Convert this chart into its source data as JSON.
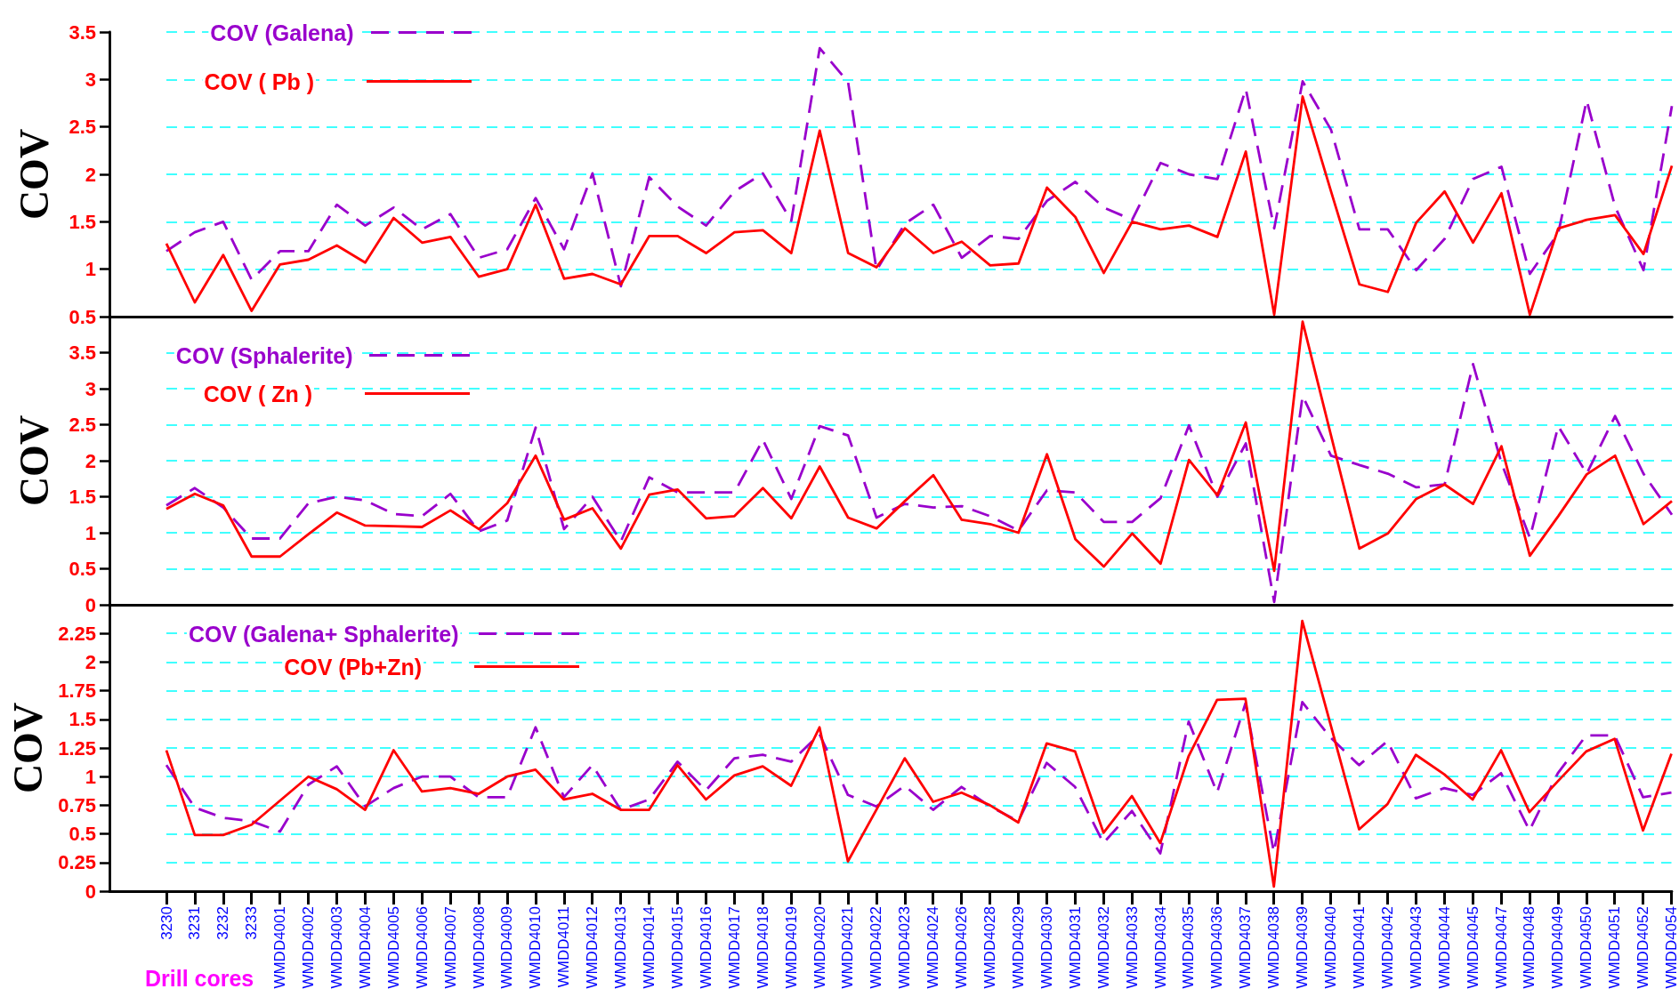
{
  "chart_data": [
    {
      "type": "line",
      "ylabel": "COV",
      "categories": [
        "3230",
        "3231",
        "3232",
        "3233",
        "WMDD4001",
        "WMDD4002",
        "WMDD4003",
        "WMDD4004",
        "WMDD4005",
        "WMDD4006",
        "WMDD4007",
        "WMDD4008",
        "WMDD4009",
        "WMDD4010",
        "WMDD4011",
        "WMDD4012",
        "WMDD4013",
        "WMDD4014",
        "WMDD4015",
        "WMDD4016",
        "WMDD4017",
        "WMDD4018",
        "WMDD4019",
        "WMDD4020",
        "WMDD4021",
        "WMDD4022",
        "WMDD4023",
        "WMDD4024",
        "WMDD4026",
        "WMDD4028",
        "WMDD4029",
        "WMDD4030",
        "WMDD4031",
        "WMDD4032",
        "WMDD4033",
        "WMDD4034",
        "WMDD4035",
        "WMDD4036",
        "WMDD4037",
        "WMDD4038",
        "WMDD4039",
        "WMDD4040",
        "WMDD4041",
        "WMDD4042",
        "WMDD4043",
        "WMDD4044",
        "WMDD4045",
        "WMDD4047",
        "WMDD4048",
        "WMDD4049",
        "WMDD4050",
        "WMDD4051",
        "WMDD4052",
        "WMDD4054"
      ],
      "series": [
        {
          "name": "COV (Galena)",
          "color": "#9900cc",
          "line_style": "dashed",
          "values": [
            1.19,
            1.39,
            1.5,
            0.89,
            1.19,
            1.19,
            1.68,
            1.46,
            1.65,
            1.42,
            1.58,
            1.12,
            1.21,
            1.75,
            1.21,
            2.01,
            0.82,
            1.97,
            1.66,
            1.46,
            1.82,
            2.01,
            1.51,
            3.33,
            2.97,
            0.99,
            1.48,
            1.68,
            1.12,
            1.35,
            1.32,
            1.72,
            1.92,
            1.65,
            1.52,
            2.12,
            2.0,
            1.95,
            2.9,
            1.43,
            2.98,
            2.47,
            1.42,
            1.42,
            0.99,
            1.32,
            1.95,
            2.08,
            0.95,
            1.38,
            2.78,
            1.66,
            0.99,
            2.72
          ]
        },
        {
          "name": "COV ( Pb )",
          "color": "#ff0000",
          "line_style": "solid",
          "values": [
            1.27,
            0.65,
            1.15,
            0.56,
            1.05,
            1.1,
            1.25,
            1.07,
            1.54,
            1.28,
            1.34,
            0.92,
            1.0,
            1.68,
            0.9,
            0.95,
            0.84,
            1.35,
            1.35,
            1.17,
            1.39,
            1.41,
            1.17,
            2.46,
            1.17,
            1.02,
            1.43,
            1.17,
            1.29,
            1.04,
            1.06,
            1.86,
            1.55,
            0.96,
            1.5,
            1.42,
            1.46,
            1.34,
            2.24,
            0.52,
            2.82,
            1.82,
            0.84,
            0.76,
            1.49,
            1.82,
            1.28,
            1.8,
            0.52,
            1.43,
            1.52,
            1.57,
            1.16,
            2.09
          ]
        }
      ],
      "ylim": [
        0.5,
        3.5
      ],
      "yticks": [
        0.5,
        1,
        1.5,
        2,
        2.5,
        3,
        3.5
      ],
      "grid": "y",
      "legend": "top left",
      "marker": "none",
      "tick_labels": "y"
    },
    {
      "type": "line",
      "ylabel": "COV",
      "categories": [
        "3230",
        "3231",
        "3232",
        "3233",
        "WMDD4001",
        "WMDD4002",
        "WMDD4003",
        "WMDD4004",
        "WMDD4005",
        "WMDD4006",
        "WMDD4007",
        "WMDD4008",
        "WMDD4009",
        "WMDD4010",
        "WMDD4011",
        "WMDD4012",
        "WMDD4013",
        "WMDD4014",
        "WMDD4015",
        "WMDD4016",
        "WMDD4017",
        "WMDD4018",
        "WMDD4019",
        "WMDD4020",
        "WMDD4021",
        "WMDD4022",
        "WMDD4023",
        "WMDD4024",
        "WMDD4026",
        "WMDD4028",
        "WMDD4029",
        "WMDD4030",
        "WMDD4031",
        "WMDD4032",
        "WMDD4033",
        "WMDD4034",
        "WMDD4035",
        "WMDD4036",
        "WMDD4037",
        "WMDD4038",
        "WMDD4039",
        "WMDD4040",
        "WMDD4041",
        "WMDD4042",
        "WMDD4043",
        "WMDD4044",
        "WMDD4045",
        "WMDD4047",
        "WMDD4048",
        "WMDD4049",
        "WMDD4050",
        "WMDD4051",
        "WMDD4052",
        "WMDD4054"
      ],
      "series": [
        {
          "name": "COV (Sphalerite)",
          "color": "#9900cc",
          "line_style": "dashed",
          "values": [
            1.38,
            1.62,
            1.35,
            0.92,
            0.92,
            1.41,
            1.5,
            1.45,
            1.26,
            1.23,
            1.54,
            1.02,
            1.17,
            2.46,
            1.05,
            1.5,
            0.88,
            1.77,
            1.56,
            1.56,
            1.56,
            2.29,
            1.47,
            2.48,
            2.35,
            1.21,
            1.4,
            1.35,
            1.37,
            1.23,
            1.03,
            1.59,
            1.56,
            1.15,
            1.15,
            1.48,
            2.49,
            1.5,
            2.24,
            0.04,
            2.9,
            2.07,
            1.94,
            1.82,
            1.63,
            1.67,
            3.34,
            1.97,
            0.93,
            2.48,
            1.82,
            2.62,
            1.82,
            1.25
          ]
        },
        {
          "name": "COV ( Zn )",
          "color": "#ff0000",
          "line_style": "solid",
          "values": [
            1.33,
            1.54,
            1.38,
            0.67,
            0.67,
            0.98,
            1.28,
            1.1,
            1.09,
            1.08,
            1.31,
            1.05,
            1.41,
            2.07,
            1.18,
            1.34,
            0.78,
            1.53,
            1.6,
            1.2,
            1.23,
            1.62,
            1.2,
            1.92,
            1.21,
            1.06,
            1.44,
            1.8,
            1.18,
            1.12,
            1.0,
            2.09,
            0.91,
            0.53,
            0.99,
            0.57,
            2.01,
            1.52,
            2.53,
            0.47,
            3.93,
            2.35,
            0.78,
            0.99,
            1.47,
            1.67,
            1.4,
            2.2,
            0.68,
            1.23,
            1.81,
            2.07,
            1.12,
            1.44
          ]
        }
      ],
      "ylim": [
        0,
        4
      ],
      "yticks": [
        0,
        0.5,
        1,
        1.5,
        2,
        2.5,
        3,
        3.5
      ],
      "grid": "y",
      "legend": "top left",
      "marker": "none",
      "tick_labels": "y"
    },
    {
      "type": "line",
      "xlabel": "Drill cores",
      "ylabel": "COV",
      "categories": [
        "3230",
        "3231",
        "3232",
        "3233",
        "WMDD4001",
        "WMDD4002",
        "WMDD4003",
        "WMDD4004",
        "WMDD4005",
        "WMDD4006",
        "WMDD4007",
        "WMDD4008",
        "WMDD4009",
        "WMDD4010",
        "WMDD4011",
        "WMDD4012",
        "WMDD4013",
        "WMDD4014",
        "WMDD4015",
        "WMDD4016",
        "WMDD4017",
        "WMDD4018",
        "WMDD4019",
        "WMDD4020",
        "WMDD4021",
        "WMDD4022",
        "WMDD4023",
        "WMDD4024",
        "WMDD4026",
        "WMDD4028",
        "WMDD4029",
        "WMDD4030",
        "WMDD4031",
        "WMDD4032",
        "WMDD4033",
        "WMDD4034",
        "WMDD4035",
        "WMDD4036",
        "WMDD4037",
        "WMDD4038",
        "WMDD4039",
        "WMDD4040",
        "WMDD4041",
        "WMDD4042",
        "WMDD4043",
        "WMDD4044",
        "WMDD4045",
        "WMDD4047",
        "WMDD4048",
        "WMDD4049",
        "WMDD4050",
        "WMDD4051",
        "WMDD4052",
        "WMDD4054"
      ],
      "series": [
        {
          "name": "COV (Galena+ Sphalerite)",
          "color": "#9900cc",
          "line_style": "dashed",
          "values": [
            1.1,
            0.73,
            0.64,
            0.61,
            0.52,
            0.93,
            1.09,
            0.74,
            0.9,
            1.0,
            1.0,
            0.82,
            0.82,
            1.43,
            0.82,
            1.1,
            0.71,
            0.8,
            1.13,
            0.88,
            1.16,
            1.19,
            1.13,
            1.37,
            0.84,
            0.74,
            0.92,
            0.71,
            0.91,
            0.74,
            0.61,
            1.12,
            0.91,
            0.42,
            0.7,
            0.33,
            1.48,
            0.86,
            1.64,
            0.34,
            1.65,
            1.34,
            1.1,
            1.31,
            0.81,
            0.9,
            0.84,
            1.03,
            0.53,
            1.03,
            1.36,
            1.36,
            0.82,
            0.86
          ]
        },
        {
          "name": "COV (Pb+Zn)",
          "color": "#ff0000",
          "line_style": "solid",
          "values": [
            1.23,
            0.49,
            0.49,
            0.58,
            0.79,
            1.0,
            0.89,
            0.71,
            1.23,
            0.87,
            0.9,
            0.85,
            1.0,
            1.06,
            0.8,
            0.85,
            0.71,
            0.71,
            1.1,
            0.8,
            1.01,
            1.09,
            0.92,
            1.43,
            0.26,
            0.71,
            1.16,
            0.78,
            0.86,
            0.75,
            0.6,
            1.29,
            1.22,
            0.51,
            0.83,
            0.42,
            1.18,
            1.67,
            1.68,
            0.04,
            2.36,
            1.45,
            0.54,
            0.76,
            1.19,
            1.02,
            0.8,
            1.23,
            0.69,
            0.96,
            1.22,
            1.33,
            0.53,
            1.2
          ]
        }
      ],
      "ylim": [
        0,
        2.5
      ],
      "yticks": [
        0,
        0.25,
        0.5,
        0.75,
        1,
        1.25,
        1.5,
        1.75,
        2,
        2.25
      ],
      "grid": "y",
      "legend": "top left",
      "marker": "none"
    }
  ]
}
